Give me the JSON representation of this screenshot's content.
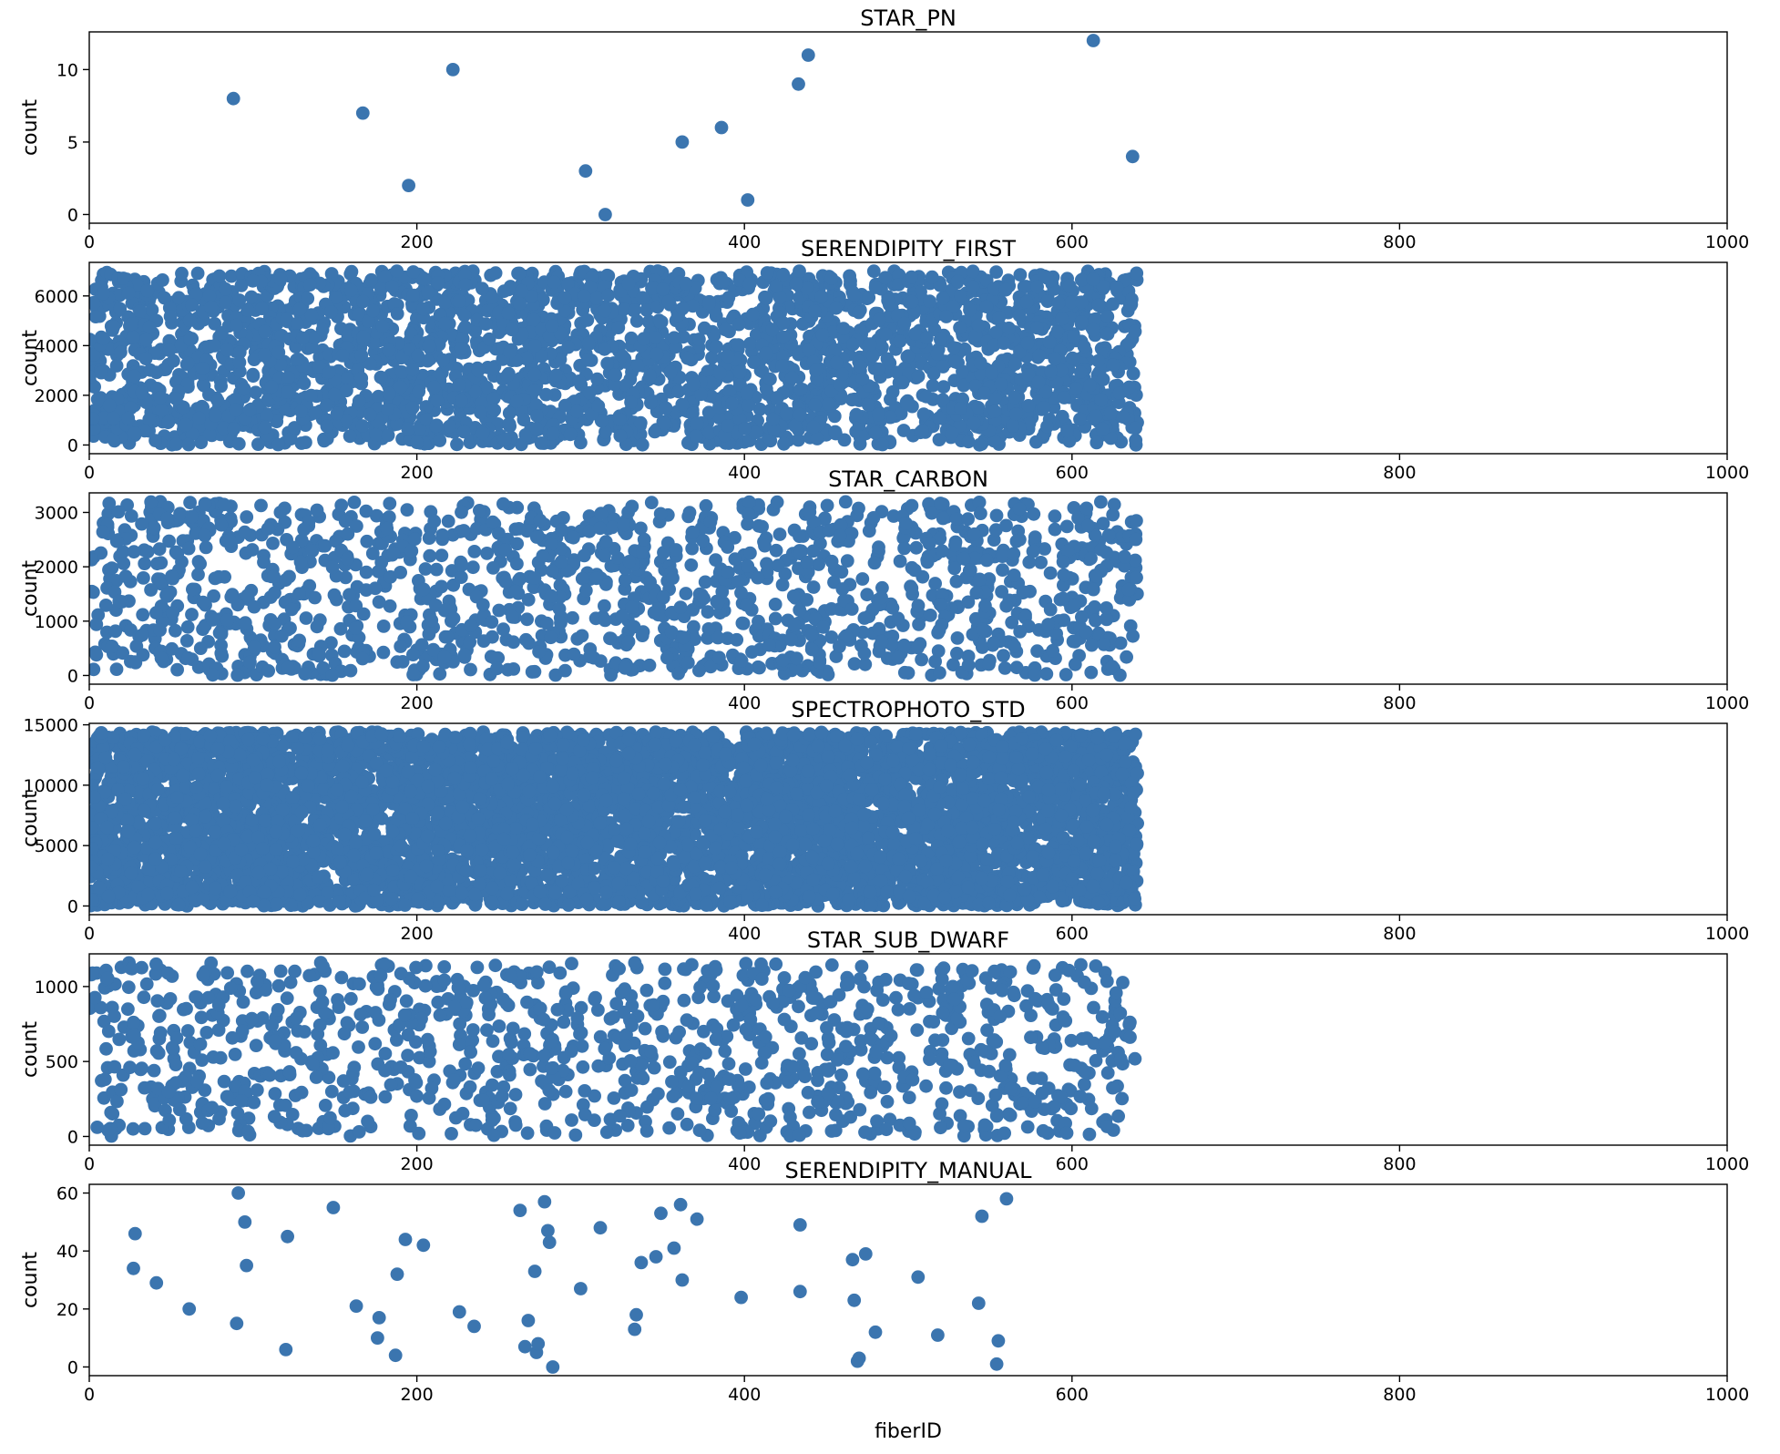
{
  "figure": {
    "marker_color": "#3b75af",
    "background": "#ffffff",
    "xlabel": "fiberID"
  },
  "chart_data": [
    {
      "type": "scatter",
      "title": "STAR_PN",
      "xlabel": "",
      "ylabel": "count",
      "xlim": [
        0,
        1000
      ],
      "ylim": [
        -0.6,
        12.6
      ],
      "xticks": [
        0,
        200,
        400,
        600,
        800,
        1000
      ],
      "yticks": [
        0,
        5,
        10
      ],
      "series": [
        {
          "x": [
            88,
            167,
            195,
            222,
            303,
            315,
            362,
            386,
            402,
            433,
            439,
            613,
            637
          ],
          "y": [
            8,
            7,
            2,
            10,
            3,
            0,
            5,
            6,
            1,
            9,
            11,
            12,
            4
          ]
        }
      ],
      "point_density": 0,
      "x_extent": [
        0,
        640
      ],
      "y_extent": [
        0,
        12
      ]
    },
    {
      "type": "scatter",
      "title": "SERENDIPITY_FIRST",
      "xlabel": "",
      "ylabel": "count",
      "xlim": [
        0,
        1000
      ],
      "ylim": [
        -350,
        7350
      ],
      "xticks": [
        0,
        200,
        400,
        600,
        800,
        1000
      ],
      "yticks": [
        0,
        2000,
        4000,
        6000
      ],
      "series": [],
      "point_density": 3000,
      "x_extent": [
        0,
        640
      ],
      "y_extent": [
        0,
        7000
      ]
    },
    {
      "type": "scatter",
      "title": "STAR_CARBON",
      "xlabel": "",
      "ylabel": "count",
      "xlim": [
        0,
        1000
      ],
      "ylim": [
        -160,
        3360
      ],
      "xticks": [
        0,
        200,
        400,
        600,
        800,
        1000
      ],
      "yticks": [
        0,
        1000,
        2000,
        3000
      ],
      "series": [],
      "point_density": 1400,
      "x_extent": [
        0,
        640
      ],
      "y_extent": [
        0,
        3200
      ]
    },
    {
      "type": "scatter",
      "title": "SPECTROPHOTO_STD",
      "xlabel": "",
      "ylabel": "count",
      "xlim": [
        0,
        1000
      ],
      "ylim": [
        -720,
        15120
      ],
      "xticks": [
        0,
        200,
        400,
        600,
        800,
        1000
      ],
      "yticks": [
        0,
        5000,
        10000,
        15000
      ],
      "series": [],
      "point_density": 6000,
      "x_extent": [
        0,
        640
      ],
      "y_extent": [
        0,
        14400
      ]
    },
    {
      "type": "scatter",
      "title": "STAR_SUB_DWARF",
      "xlabel": "",
      "ylabel": "count",
      "xlim": [
        0,
        1000
      ],
      "ylim": [
        -58,
        1218
      ],
      "xticks": [
        0,
        200,
        400,
        600,
        800,
        1000
      ],
      "yticks": [
        0,
        500,
        1000
      ],
      "series": [],
      "point_density": 1100,
      "x_extent": [
        0,
        640
      ],
      "y_extent": [
        0,
        1160
      ]
    },
    {
      "type": "scatter",
      "title": "SERENDIPITY_MANUAL",
      "xlabel": "fiberID",
      "ylabel": "count",
      "xlim": [
        0,
        1000
      ],
      "ylim": [
        -3,
        63
      ],
      "xticks": [
        0,
        200,
        400,
        600,
        800,
        1000
      ],
      "yticks": [
        0,
        20,
        40,
        60
      ],
      "series": [
        {
          "x": [
            27,
            28,
            41,
            61,
            90,
            91,
            95,
            96,
            120,
            121,
            149,
            163,
            176,
            177,
            187,
            188,
            193,
            204,
            226,
            235,
            263,
            266,
            268,
            272,
            273,
            274,
            278,
            280,
            281,
            283,
            300,
            312,
            333,
            334,
            337,
            346,
            349,
            357,
            361,
            362,
            371,
            398,
            434,
            434,
            466,
            467,
            469,
            470,
            474,
            480,
            506,
            518,
            543,
            545,
            554,
            555,
            560
          ],
          "y": [
            34,
            46,
            29,
            20,
            15,
            60,
            50,
            35,
            6,
            45,
            55,
            21,
            10,
            17,
            4,
            32,
            44,
            42,
            19,
            14,
            54,
            7,
            16,
            33,
            5,
            8,
            57,
            47,
            43,
            0,
            27,
            48,
            13,
            18,
            36,
            38,
            53,
            41,
            56,
            30,
            51,
            24,
            26,
            49,
            37,
            23,
            2,
            3,
            39,
            12,
            31,
            11,
            22,
            52,
            1,
            9,
            58
          ]
        }
      ],
      "point_density": 0,
      "x_extent": [
        0,
        640
      ],
      "y_extent": [
        0,
        60
      ]
    }
  ]
}
